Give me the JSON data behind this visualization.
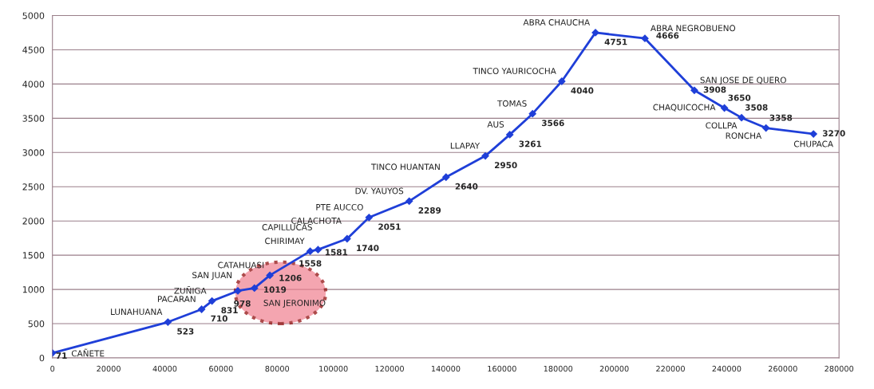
{
  "chart_data": {
    "type": "line",
    "x": [
      0,
      41100,
      53100,
      56800,
      66000,
      71900,
      77400,
      91750,
      94550,
      104900,
      112700,
      127000,
      140100,
      154100,
      162800,
      170900,
      181300,
      193300,
      210900,
      228500,
      239200,
      245300,
      254000,
      270900
    ],
    "series": [
      {
        "color": "#1f3fd8",
        "values": [
          71,
          523,
          710,
          831,
          978,
          1019,
          1206,
          1558,
          1581,
          1740,
          2051,
          2289,
          2640,
          2950,
          3261,
          3566,
          4040,
          4751,
          4666,
          3908,
          3650,
          3508,
          3358,
          3270
        ]
      }
    ],
    "annotations": [
      {
        "text": "CAÑETE",
        "x": 0,
        "y": 71
      },
      {
        "text": "LUNAHUANA",
        "x": 41100,
        "y": 523
      },
      {
        "text": "PACARAN",
        "x": 53100,
        "y": 710
      },
      {
        "text": "ZUÑIGA",
        "x": 56800,
        "y": 831
      },
      {
        "text": "SAN JUAN",
        "x": 66000,
        "y": 978
      },
      {
        "text": "SAN JERONIMO",
        "x": 71900,
        "y": 1019
      },
      {
        "text": "CATAHUASI",
        "x": 77400,
        "y": 1206
      },
      {
        "text": "CHIRIMAY",
        "x": 91750,
        "y": 1558
      },
      {
        "text": "CAPILLUCAS",
        "x": 94550,
        "y": 1581
      },
      {
        "text": "CALACHOTA",
        "x": 104900,
        "y": 1740
      },
      {
        "text": "PTE AUCCO",
        "x": 112700,
        "y": 2051
      },
      {
        "text": "DV. YAUYOS",
        "x": 127000,
        "y": 2289
      },
      {
        "text": "TINCO HUANTAN",
        "x": 140100,
        "y": 2640
      },
      {
        "text": "LLAPAY",
        "x": 154100,
        "y": 2950
      },
      {
        "text": "AUS",
        "x": 162800,
        "y": 3261
      },
      {
        "text": "TOMAS",
        "x": 170900,
        "y": 3566
      },
      {
        "text": "TINCO YAURICOCHA",
        "x": 181300,
        "y": 4040
      },
      {
        "text": "ABRA CHAUCHA",
        "x": 193300,
        "y": 4751
      },
      {
        "text": "ABRA NEGROBUENO",
        "x": 210900,
        "y": 4666
      },
      {
        "text": "SAN JOSE DE QUERO",
        "x": 228500,
        "y": 3908
      },
      {
        "text": "CHAQUICOCHA",
        "x": 239200,
        "y": 3650
      },
      {
        "text": "COLLPA",
        "x": 245300,
        "y": 3508
      },
      {
        "text": "RONCHA",
        "x": 254000,
        "y": 3358
      },
      {
        "text": "CHUPACA",
        "x": 270900,
        "y": 3270
      }
    ],
    "data_labels": true,
    "marker": "diamond",
    "line_style": "solid",
    "grid": "y",
    "xlim": [
      0,
      280000
    ],
    "xticks": [
      0,
      20000,
      40000,
      60000,
      80000,
      100000,
      120000,
      140000,
      160000,
      180000,
      200000,
      220000,
      240000,
      260000,
      280000
    ],
    "ylim": [
      0,
      5000
    ],
    "yticks": [
      0,
      500,
      1000,
      1500,
      2000,
      2500,
      3000,
      3500,
      4000,
      4500,
      5000
    ]
  }
}
